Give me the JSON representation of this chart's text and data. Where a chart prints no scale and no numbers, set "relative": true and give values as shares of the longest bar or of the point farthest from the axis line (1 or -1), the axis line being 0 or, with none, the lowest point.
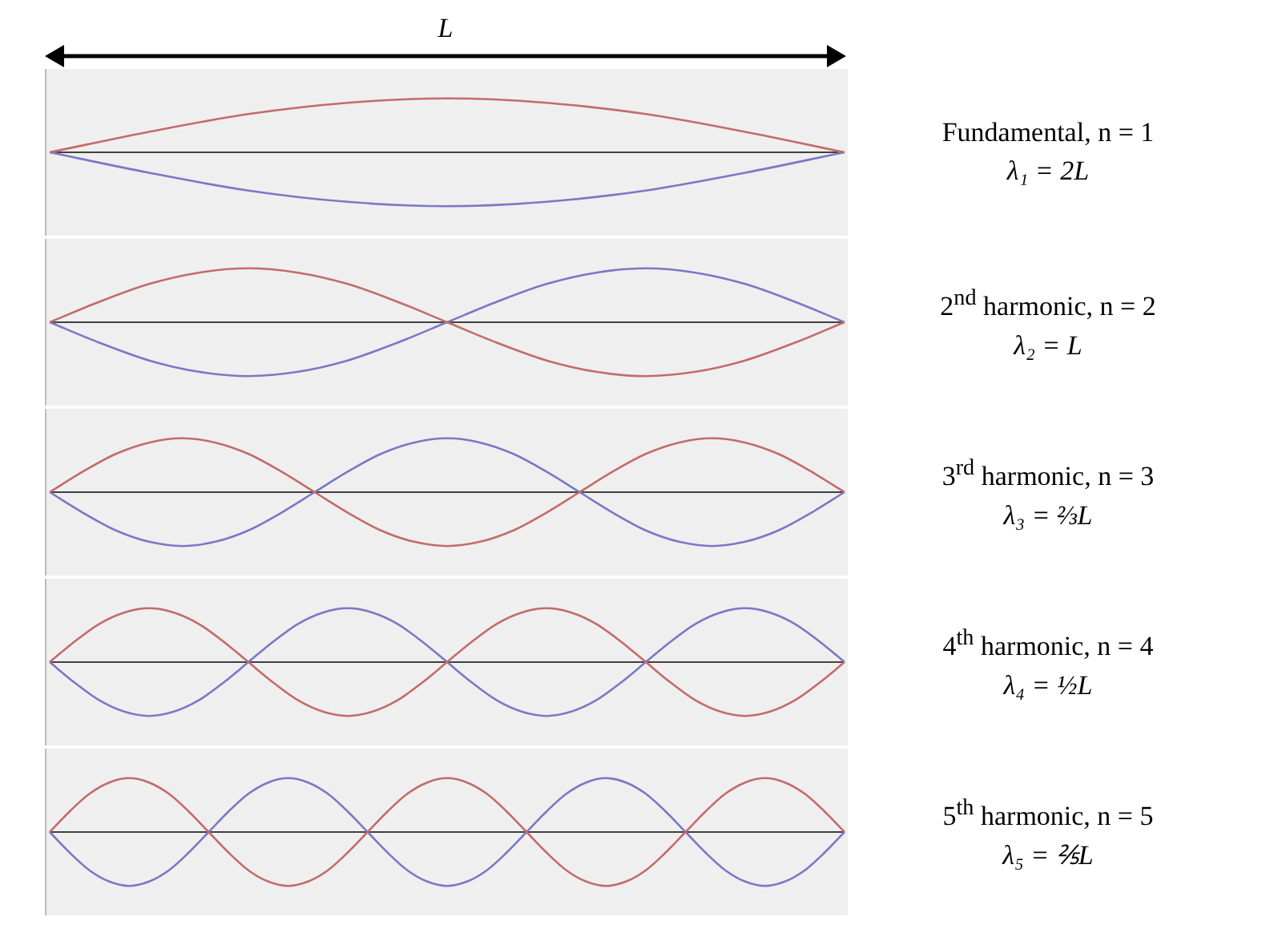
{
  "chart_data": [
    {
      "type": "line",
      "relative": true,
      "marker": "none",
      "legend": false,
      "xlabel": "L",
      "annotations": [
        "Fundamental, n = 1",
        "λ₁ = 2L"
      ],
      "ref_lines": [
        {
          "axis": "y",
          "value": 0,
          "color": "#404040"
        }
      ],
      "categories": [
        null,
        null,
        null,
        null,
        null,
        null,
        null,
        null,
        null
      ],
      "series": [
        {
          "color": "#c46b6b",
          "values": [
            0,
            0.38,
            0.71,
            0.92,
            1,
            0.92,
            0.71,
            0.38,
            0
          ]
        },
        {
          "color": "#7b78c4",
          "values": [
            0,
            -0.38,
            -0.71,
            -0.92,
            -1,
            -0.92,
            -0.71,
            -0.38,
            0
          ]
        }
      ]
    },
    {
      "type": "line",
      "relative": true,
      "marker": "none",
      "legend": false,
      "annotations": [
        "2$^{nd}$ harmonic, n = 2",
        "λ₂ = L"
      ],
      "ref_lines": [
        {
          "axis": "y",
          "value": 0,
          "color": "#404040"
        }
      ],
      "categories": [
        null,
        null,
        null,
        null,
        null,
        null,
        null,
        null,
        null,
        null,
        null,
        null,
        null,
        null,
        null,
        null,
        null
      ],
      "series": [
        {
          "color": "#c46b6b",
          "values": [
            0,
            0.38,
            0.71,
            0.92,
            1,
            0.92,
            0.71,
            0.38,
            0,
            -0.38,
            -0.71,
            -0.92,
            -1,
            -0.92,
            -0.71,
            -0.38,
            0
          ]
        },
        {
          "color": "#7b78c4",
          "values": [
            0,
            -0.38,
            -0.71,
            -0.92,
            -1,
            -0.92,
            -0.71,
            -0.38,
            0,
            0.38,
            0.71,
            0.92,
            1,
            0.92,
            0.71,
            0.38,
            0
          ]
        }
      ]
    },
    {
      "type": "line",
      "relative": true,
      "marker": "none",
      "legend": false,
      "annotations": [
        "3$^{rd}$ harmonic, n = 3",
        "λ₃ = ⅔L"
      ],
      "ref_lines": [
        {
          "axis": "y",
          "value": 0,
          "color": "#404040"
        }
      ],
      "categories": [
        null,
        null,
        null,
        null,
        null,
        null,
        null,
        null,
        null,
        null,
        null,
        null,
        null,
        null,
        null,
        null,
        null,
        null,
        null,
        null,
        null,
        null,
        null,
        null,
        null
      ],
      "series": [
        {
          "color": "#c46b6b",
          "values": [
            0,
            0.38,
            0.71,
            0.92,
            1,
            0.92,
            0.71,
            0.38,
            0,
            -0.38,
            -0.71,
            -0.92,
            -1,
            -0.92,
            -0.71,
            -0.38,
            0,
            0.38,
            0.71,
            0.92,
            1,
            0.92,
            0.71,
            0.38,
            0
          ]
        },
        {
          "color": "#7b78c4",
          "values": [
            0,
            -0.38,
            -0.71,
            -0.92,
            -1,
            -0.92,
            -0.71,
            -0.38,
            0,
            0.38,
            0.71,
            0.92,
            1,
            0.92,
            0.71,
            0.38,
            0,
            -0.38,
            -0.71,
            -0.92,
            -1,
            -0.92,
            -0.71,
            -0.38,
            0
          ]
        }
      ]
    },
    {
      "type": "line",
      "relative": true,
      "marker": "none",
      "legend": false,
      "annotations": [
        "4$^{th}$ harmonic, n = 4",
        "λ₄ = ½L"
      ],
      "ref_lines": [
        {
          "axis": "y",
          "value": 0,
          "color": "#404040"
        }
      ],
      "categories": [
        null,
        null,
        null,
        null,
        null,
        null,
        null,
        null,
        null,
        null,
        null,
        null,
        null,
        null,
        null,
        null,
        null,
        null,
        null,
        null,
        null,
        null,
        null,
        null,
        null,
        null,
        null,
        null,
        null,
        null,
        null,
        null,
        null
      ],
      "series": [
        {
          "color": "#c46b6b",
          "values": [
            0,
            0.38,
            0.71,
            0.92,
            1,
            0.92,
            0.71,
            0.38,
            0,
            -0.38,
            -0.71,
            -0.92,
            -1,
            -0.92,
            -0.71,
            -0.38,
            0,
            0.38,
            0.71,
            0.92,
            1,
            0.92,
            0.71,
            0.38,
            0,
            -0.38,
            -0.71,
            -0.92,
            -1,
            -0.92,
            -0.71,
            -0.38,
            0
          ]
        },
        {
          "color": "#7b78c4",
          "values": [
            0,
            -0.38,
            -0.71,
            -0.92,
            -1,
            -0.92,
            -0.71,
            -0.38,
            0,
            0.38,
            0.71,
            0.92,
            1,
            0.92,
            0.71,
            0.38,
            0,
            -0.38,
            -0.71,
            -0.92,
            -1,
            -0.92,
            -0.71,
            -0.38,
            0,
            0.38,
            0.71,
            0.92,
            1,
            0.92,
            0.71,
            0.38,
            0
          ]
        }
      ]
    },
    {
      "type": "line",
      "relative": true,
      "marker": "none",
      "legend": false,
      "annotations": [
        "5$^{th}$ harmonic, n = 5",
        "λ₅ = ⅖L"
      ],
      "ref_lines": [
        {
          "axis": "y",
          "value": 0,
          "color": "#404040"
        }
      ],
      "categories": [
        null,
        null,
        null,
        null,
        null,
        null,
        null,
        null,
        null,
        null,
        null,
        null,
        null,
        null,
        null,
        null,
        null,
        null,
        null,
        null,
        null,
        null,
        null,
        null,
        null,
        null,
        null,
        null,
        null,
        null,
        null,
        null,
        null,
        null,
        null,
        null,
        null,
        null,
        null,
        null,
        null
      ],
      "series": [
        {
          "color": "#c46b6b",
          "values": [
            0,
            0.38,
            0.71,
            0.92,
            1,
            0.92,
            0.71,
            0.38,
            0,
            -0.38,
            -0.71,
            -0.92,
            -1,
            -0.92,
            -0.71,
            -0.38,
            0,
            0.38,
            0.71,
            0.92,
            1,
            0.92,
            0.71,
            0.38,
            0,
            -0.38,
            -0.71,
            -0.92,
            -1,
            -0.92,
            -0.71,
            -0.38,
            0,
            0.38,
            0.71,
            0.92,
            1,
            0.92,
            0.71,
            0.38,
            0
          ]
        },
        {
          "color": "#7b78c4",
          "values": [
            0,
            -0.38,
            -0.71,
            -0.92,
            -1,
            -0.92,
            -0.71,
            -0.38,
            0,
            0.38,
            0.71,
            0.92,
            1,
            0.92,
            0.71,
            0.38,
            0,
            -0.38,
            -0.71,
            -0.92,
            -1,
            -0.92,
            -0.71,
            -0.38,
            0,
            0.38,
            0.71,
            0.92,
            1,
            0.92,
            0.71,
            0.38,
            0,
            -0.38,
            -0.71,
            -0.92,
            -1,
            -0.92,
            -0.71,
            -0.38,
            0
          ]
        }
      ]
    }
  ]
}
